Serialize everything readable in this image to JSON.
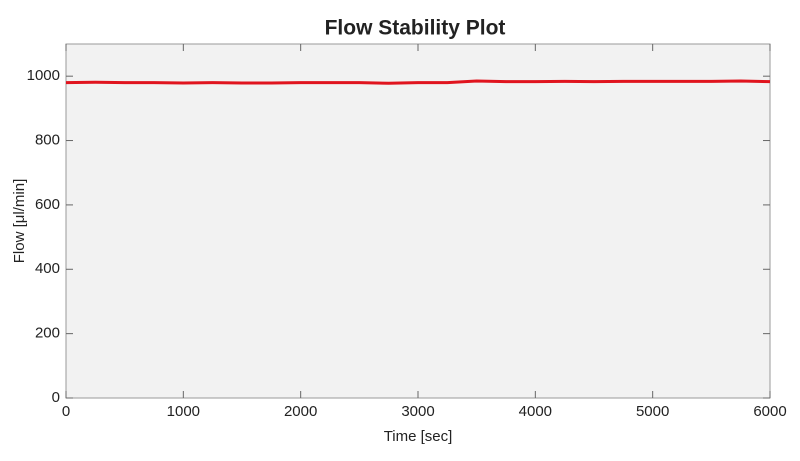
{
  "chart_data": {
    "type": "line",
    "title": "Flow Stability Plot",
    "x_label": "Time [sec]",
    "y_label": "Flow [μl/min]",
    "x": [
      0,
      250,
      500,
      750,
      1000,
      1250,
      1500,
      1750,
      2000,
      2250,
      2500,
      2750,
      3000,
      3250,
      3500,
      3750,
      4000,
      4250,
      4500,
      4750,
      5000,
      5250,
      5500,
      5750,
      6000
    ],
    "values": [
      980,
      981,
      980,
      980,
      979,
      980,
      979,
      979,
      980,
      980,
      980,
      978,
      980,
      980,
      985,
      983,
      983,
      984,
      983,
      984,
      984,
      984,
      984,
      985,
      983
    ],
    "color": "#e0141e",
    "xlim": [
      0,
      6000
    ],
    "xticks": [
      0,
      1000,
      2000,
      3000,
      4000,
      5000,
      6000
    ],
    "ylim": [
      0,
      1100
    ],
    "yticks": [
      0,
      200,
      400,
      600,
      800,
      1000
    ],
    "grid": false
  }
}
